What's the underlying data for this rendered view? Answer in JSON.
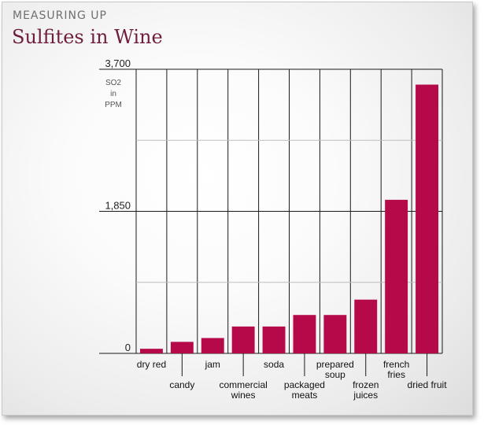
{
  "header": {
    "kicker": "MEASURING UP",
    "title": "Sulfites in Wine"
  },
  "colors": {
    "bar": "#b5094a",
    "title": "#6f1d3d",
    "grid_major": "#1a1a1a",
    "grid_minor": "#bdbdbd"
  },
  "chart_data": {
    "type": "bar",
    "title": "Sulfites in Wine",
    "ylabel_lines": [
      "SO2",
      "in",
      "PPM"
    ],
    "ylim": [
      0,
      3700
    ],
    "yticks": [
      "0",
      "1,850",
      "3,700"
    ],
    "grid": true,
    "categories": [
      [
        "dry red"
      ],
      [
        "candy"
      ],
      [
        "jam"
      ],
      [
        "commercial",
        "wines"
      ],
      [
        "soda"
      ],
      [
        "packaged",
        "meats"
      ],
      [
        "prepared",
        "soup"
      ],
      [
        "frozen",
        "juices"
      ],
      [
        "french",
        "fries"
      ],
      [
        "dried fruit"
      ]
    ],
    "values": [
      60,
      150,
      200,
      350,
      350,
      500,
      500,
      700,
      2000,
      3500
    ]
  }
}
